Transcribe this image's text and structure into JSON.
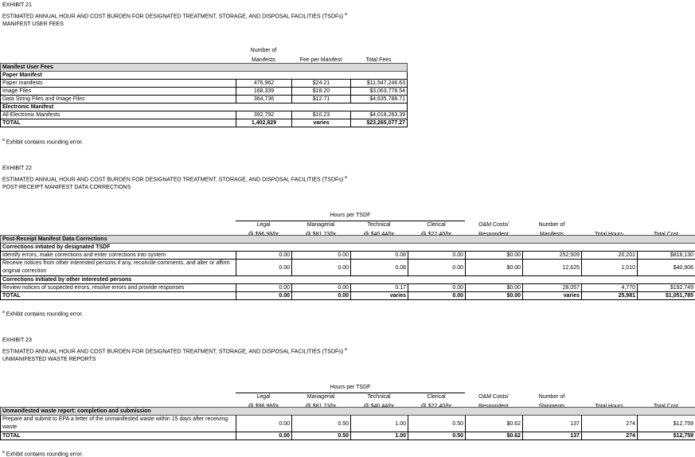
{
  "exhibits": [
    {
      "label": "EXHIBIT 21",
      "title": "ESTIMATED ANNUAL HOUR AND COST BURDEN FOR DESIGNATED TREATMENT, STORAGE, AND DISPOSAL FACILITIES (TSDFs)",
      "title_sup": "a",
      "subtitle": "MANIFEST USER FEES",
      "headers": [
        "Number of Manifests",
        "Fee per Manifest",
        "Total Fees"
      ],
      "rows": [
        {
          "type": "band",
          "label": "Manifest User Fees"
        },
        {
          "type": "sub",
          "label": "Paper Manifest"
        },
        {
          "type": "data",
          "label": "Paper manifests",
          "cells": [
            "476,962",
            "$24.21",
            "$11,547,246.63"
          ]
        },
        {
          "type": "data",
          "label": "Image Files",
          "cells": [
            "168,339",
            "$18.20",
            "$3,063,778.54"
          ]
        },
        {
          "type": "data",
          "label": "Data String Files and Image Files",
          "cells": [
            "364,736",
            "$12.71",
            "$4,635,788.71"
          ]
        },
        {
          "type": "sub",
          "label": "Electronic Manifest"
        },
        {
          "type": "data",
          "label": "All Electronic Manifests",
          "cells": [
            "392,792",
            "$10.23",
            "$4,018,263.39"
          ]
        },
        {
          "type": "total",
          "label": "TOTAL",
          "cells": [
            "1,402,829",
            "varies",
            "$23,265,077.27"
          ]
        }
      ],
      "footnote_sup": "a",
      "footnote": "Exhibit contains rounding error."
    },
    {
      "label": "EXHIBIT 22",
      "title": "ESTIMATED ANNUAL HOUR AND COST BURDEN FOR DESIGNATED TREATMENT, STORAGE, AND DISPOSAL FACILITIES (TSDFs)",
      "title_sup": "a",
      "subtitle": "POST-RECEIPT MANIFEST DATA CORRECTIONS",
      "group_header": "Hours per TSDF",
      "headers": [
        [
          "Legal",
          "@ $96.98/hr"
        ],
        [
          "Managerial",
          "@ $81.73/hr"
        ],
        [
          "Technical",
          "@ $40.44/hr"
        ],
        [
          "Clerical",
          "@ $22.40/hr"
        ],
        [
          "O&M Costs/",
          "Respondent"
        ],
        [
          "Number of",
          "Manifests"
        ],
        [
          "",
          "Total Hours"
        ],
        [
          "",
          "Total Cost"
        ]
      ],
      "rows": [
        {
          "type": "band",
          "label": "Post-Receipt Manifest Data Corrections"
        },
        {
          "type": "sub",
          "label": "Corrections intiated by designated TSDF"
        },
        {
          "type": "data",
          "label": "Identify errors, make corrections and enter corrections into system",
          "cells": [
            "0.00",
            "0.00",
            "0.08",
            "0.00",
            "$0.00",
            "252,509",
            "20,201",
            "$818,130"
          ]
        },
        {
          "type": "data2",
          "label": "Receive notices from other interested persons if any, reconcile comments, and alter or affirm original correction",
          "cells": [
            "0.00",
            "0.00",
            "0.08",
            "0.00",
            "$0.00",
            "12,625",
            "1,010",
            "$40,906"
          ]
        },
        {
          "type": "sub",
          "label": "Corrections initiated by other interested persons"
        },
        {
          "type": "data",
          "label": "Review notices of suspected errors, resolve errors and provide responses",
          "cells": [
            "0.00",
            "0.00",
            "0.17",
            "0.00",
            "$0.00",
            "28,057",
            "4,770",
            "$192,749"
          ]
        },
        {
          "type": "total",
          "label": "TOTAL",
          "cells": [
            "0.00",
            "0.00",
            "varies",
            "0.00",
            "$0.00",
            "varies",
            "25,981",
            "$1,051,785"
          ]
        }
      ],
      "footnote_sup": "a",
      "footnote": "Exhibit contains rounding error."
    },
    {
      "label": "EXHIBIT 23",
      "title": "ESTIMATED ANNUAL HOUR AND COST BURDEN FOR DESIGNATED TREATMENT, STORAGE, AND DISPOSAL FACILITIES (TSDFs)",
      "title_sup": "a",
      "subtitle": "UNMANIFESTED WASTE REPORTS",
      "group_header": "Hours per TSDF",
      "headers": [
        [
          "Legal",
          "@ $96.98/hr"
        ],
        [
          "Managerial",
          "@ $81.73/hr"
        ],
        [
          "Technical",
          "@ $40.44/hr"
        ],
        [
          "Clerical",
          "@ $22.40/hr"
        ],
        [
          "O&M Costs/",
          "Respondent"
        ],
        [
          "Number of",
          "Shipments"
        ],
        [
          "",
          "Total Hours"
        ],
        [
          "",
          "Total Cost"
        ]
      ],
      "rows": [
        {
          "type": "band",
          "label": "Unmanifested waste report:  completion and submission"
        },
        {
          "type": "data2",
          "label": "Prepare and submit to EPA a letter of the unmanifested waste within 15 days after receiving waste",
          "cells": [
            "0.00",
            "0.50",
            "1.00",
            "0.50",
            "$0.62",
            "137",
            "274",
            "$12,759"
          ]
        },
        {
          "type": "total",
          "label": "TOTAL",
          "cells": [
            "0.00",
            "0.50",
            "1.00",
            "0.50",
            "$0.62",
            "137",
            "274",
            "$12,759"
          ]
        }
      ],
      "footnote_sup": "a",
      "footnote": "Exhibit contains rounding error."
    }
  ]
}
